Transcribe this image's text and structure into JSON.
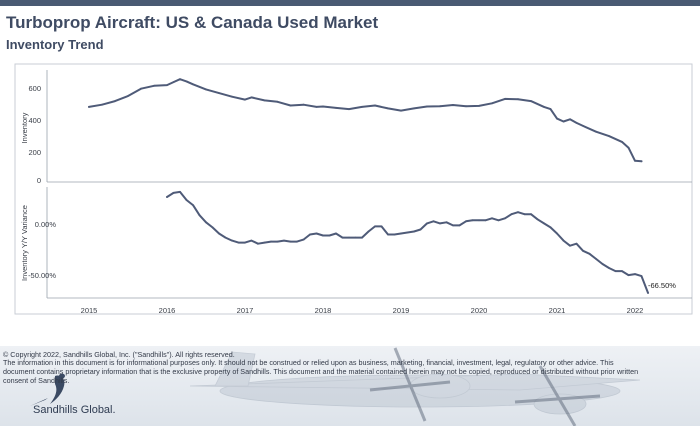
{
  "header": {
    "title": "Turboprop Aircraft:  US & Canada Used Market",
    "subtitle": "Inventory Trend"
  },
  "colors": {
    "accent_bar": "#4a5a73",
    "series_line": "#4f5b78",
    "title_text": "#3f4b63"
  },
  "chart_data": [
    {
      "type": "line",
      "ylabel": "Inventory",
      "ylim": [
        0,
        700
      ],
      "yticks": [
        "0",
        "200",
        "400",
        "600"
      ],
      "grid": false,
      "x": [
        2015.0,
        2015.167,
        2015.333,
        2015.5,
        2015.667,
        2015.833,
        2016.0,
        2016.083,
        2016.167,
        2016.25,
        2016.333,
        2016.5,
        2016.667,
        2016.833,
        2017.0,
        2017.083,
        2017.25,
        2017.417,
        2017.583,
        2017.75,
        2017.917,
        2018.0,
        2018.167,
        2018.333,
        2018.5,
        2018.667,
        2018.833,
        2019.0,
        2019.167,
        2019.333,
        2019.5,
        2019.667,
        2019.833,
        2020.0,
        2020.167,
        2020.333,
        2020.5,
        2020.667,
        2020.833,
        2020.917,
        2021.0,
        2021.083,
        2021.167,
        2021.25,
        2021.333,
        2021.5,
        2021.667,
        2021.833,
        2021.917,
        2022.0,
        2022.083
      ],
      "series": [
        {
          "values": [
            505,
            520,
            545,
            580,
            630,
            650,
            655,
            675,
            695,
            680,
            660,
            625,
            600,
            575,
            555,
            570,
            550,
            540,
            515,
            520,
            505,
            508,
            498,
            490,
            505,
            515,
            495,
            480,
            495,
            508,
            510,
            518,
            510,
            512,
            530,
            560,
            558,
            545,
            505,
            490,
            425,
            405,
            420,
            395,
            375,
            335,
            305,
            265,
            225,
            135,
            132
          ]
        }
      ]
    },
    {
      "type": "line",
      "ylabel": "Inventory Y/Y Variance",
      "ylim": [
        -75,
        40
      ],
      "yticks": [
        "0.00%",
        "-50.00%"
      ],
      "xticks": [
        "2015",
        "2016",
        "2017",
        "2018",
        "2019",
        "2020",
        "2021",
        "2022"
      ],
      "grid": false,
      "x": [
        2016.0,
        2016.083,
        2016.167,
        2016.25,
        2016.333,
        2016.417,
        2016.5,
        2016.583,
        2016.667,
        2016.75,
        2016.833,
        2016.917,
        2017.0,
        2017.083,
        2017.167,
        2017.25,
        2017.333,
        2017.417,
        2017.5,
        2017.583,
        2017.667,
        2017.75,
        2017.833,
        2017.917,
        2018.0,
        2018.083,
        2018.167,
        2018.25,
        2018.333,
        2018.417,
        2018.5,
        2018.583,
        2018.667,
        2018.75,
        2018.833,
        2018.917,
        2019.0,
        2019.083,
        2019.167,
        2019.25,
        2019.333,
        2019.417,
        2019.5,
        2019.583,
        2019.667,
        2019.75,
        2019.833,
        2019.917,
        2020.0,
        2020.083,
        2020.167,
        2020.25,
        2020.333,
        2020.417,
        2020.5,
        2020.583,
        2020.667,
        2020.75,
        2020.833,
        2020.917,
        2021.0,
        2021.083,
        2021.167,
        2021.25,
        2021.333,
        2021.417,
        2021.5,
        2021.583,
        2021.667,
        2021.75,
        2021.833,
        2021.917,
        2022.0,
        2022.083,
        2022.167
      ],
      "series": [
        {
          "values": [
            28,
            32,
            33,
            25,
            20,
            10,
            3,
            -2,
            -8,
            -12,
            -15,
            -17,
            -17,
            -15,
            -18,
            -17,
            -16,
            -16,
            -15,
            -16,
            -16,
            -14,
            -9,
            -8,
            -10,
            -10,
            -8,
            -12,
            -12,
            -12,
            -12,
            -6,
            -1,
            -1,
            -9,
            -9,
            -8,
            -7,
            -6,
            -4,
            2,
            4,
            2,
            3,
            0,
            0,
            4,
            5,
            5,
            5,
            7,
            5,
            7,
            11,
            13,
            11,
            11,
            6,
            2,
            -2,
            -8,
            -15,
            -20,
            -18,
            -25,
            -28,
            -33,
            -38,
            -42,
            -45,
            -45,
            -49,
            -48,
            -50,
            -66.5
          ]
        }
      ],
      "annotations": [
        "-66.50%"
      ]
    }
  ],
  "footer": {
    "copyright": "© Copyright 2022, Sandhills Global, Inc. (\"Sandhills\"). All rights reserved.",
    "disclaimer": "The information in this document is for informational purposes only.  It should not be construed or relied upon as business, marketing, financial, investment, legal, regulatory or other advice. This document contains proprietary information that is the exclusive property of Sandhills. This document and the material contained herein may not be copied, reproduced or distributed without prior written consent of Sandhills.",
    "logo_text": "Sandhills Global."
  }
}
